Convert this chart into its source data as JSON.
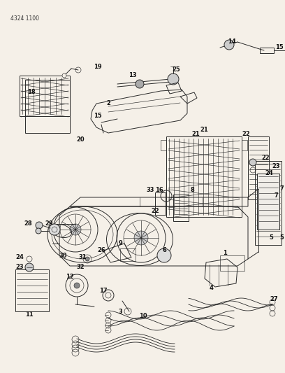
{
  "part_number": "4324 1100",
  "bg": "#f5f0e8",
  "lc": "#2a2a2a",
  "fig_w": 4.08,
  "fig_h": 5.33,
  "dpi": 100
}
